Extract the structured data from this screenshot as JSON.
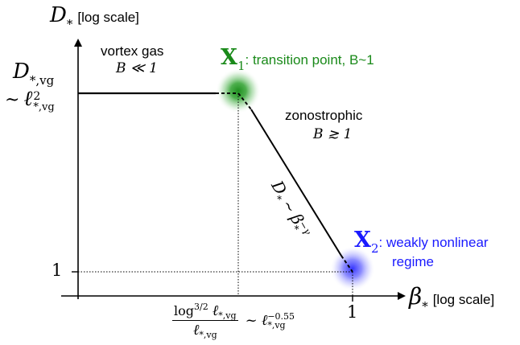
{
  "axes": {
    "y_symbol": "D",
    "y_subscript": "*",
    "y_suffix": "[log scale]",
    "x_symbol": "β",
    "x_subscript": "*",
    "x_suffix": "[log scale]",
    "y_tick_one": "1",
    "x_tick_one": "1"
  },
  "y_level": {
    "top_symbol": "D",
    "top_sub": "*,vg",
    "tilde": "~",
    "ell": "ℓ",
    "ell_sup": "2",
    "ell_sub": "*,vg"
  },
  "x_level": {
    "num_log": "log",
    "num_sup": "3/2",
    "num_ell": "ℓ",
    "num_sub": "*,vg",
    "den_ell": "ℓ",
    "den_sub": "*,vg",
    "tilde": "~",
    "rhs_ell": "ℓ",
    "rhs_sup": "−0.55",
    "rhs_sub": "*,vg"
  },
  "regions": {
    "vortex_gas": "vortex gas",
    "vortex_gas_cond": "B ≪ 1",
    "zonostrophic": "zonostrophic",
    "zonostrophic_cond": "B ≳ 1"
  },
  "points": {
    "x1_symbol": "X",
    "x1_sub": "1",
    "x1_desc": ": transition point, B~1",
    "x1_color": "#1a8a1a",
    "x2_symbol": "X",
    "x2_sub": "2",
    "x2_desc_line1": ": weakly nonlinear",
    "x2_desc_line2": "regime",
    "x2_color": "#1a1aff"
  },
  "slope_label": {
    "symbol": "D",
    "sub": "*",
    "tilde": "∼",
    "beta": "β",
    "beta_sub": "*",
    "beta_sup": "−γ"
  }
}
